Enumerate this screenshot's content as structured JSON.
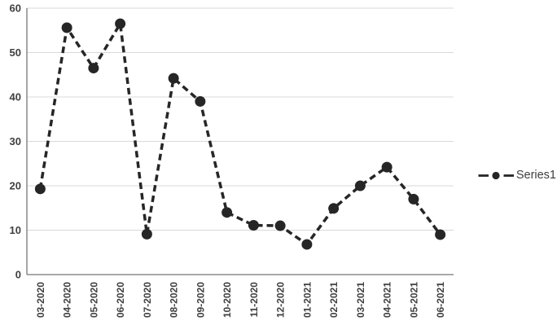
{
  "chart_data": {
    "type": "line",
    "title": "",
    "xlabel": "",
    "ylabel": "",
    "categories": [
      "03-2020",
      "04-2020",
      "05-2020",
      "06-2020",
      "07-2020",
      "08-2020",
      "09-2020",
      "10-2020",
      "11-2020",
      "12-2020",
      "01-2021",
      "02-2021",
      "03-2021",
      "04-2021",
      "05-2021",
      "06-2021"
    ],
    "series": [
      {
        "name": "Series1",
        "values": [
          19.3,
          55.6,
          46.5,
          56.5,
          9.1,
          44.2,
          39.0,
          14.0,
          11.1,
          11.0,
          6.8,
          14.9,
          20.0,
          24.2,
          17.0,
          9.0
        ]
      }
    ],
    "ylim": [
      0,
      60
    ],
    "yticks": [
      0,
      10,
      20,
      30,
      40,
      50,
      60
    ],
    "grid": true,
    "legend_position": "right",
    "line_style": "dashed",
    "marker": "circle"
  },
  "colors": {
    "line": "#262626",
    "marker": "#262626",
    "gridline": "#d9d9d9",
    "axis": "#767676",
    "label": "#404040",
    "legend_text": "#3f3f3f",
    "background": "#ffffff"
  }
}
